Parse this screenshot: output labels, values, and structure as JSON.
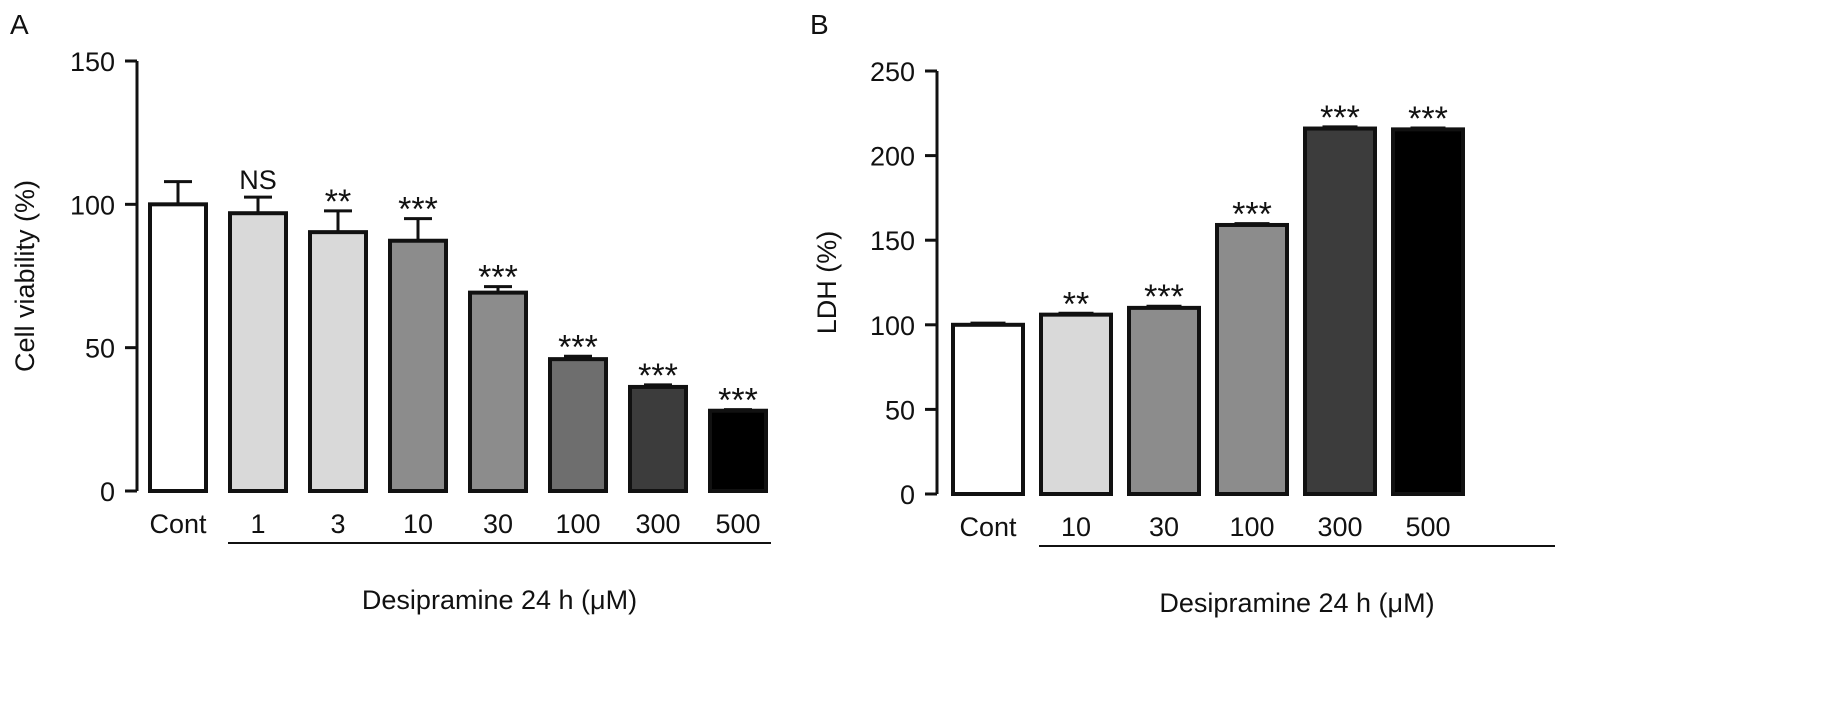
{
  "chart_data": [
    {
      "panel": "A",
      "type": "bar",
      "ylabel": "Cell viability (%)",
      "xlabel": "Desipramine 24 h (μM)",
      "ylim": [
        0,
        150
      ],
      "yticks": [
        0,
        50,
        100,
        150
      ],
      "categories": [
        "Cont",
        "1",
        "3",
        "10",
        "30",
        "100",
        "300",
        "500"
      ],
      "values": [
        100,
        96.9,
        90.3,
        87.3,
        69.2,
        46,
        36.3,
        28
      ],
      "errors": [
        7.9,
        5.6,
        7.4,
        7.7,
        2.1,
        1.0,
        0.7,
        0.4
      ],
      "annotations": [
        "",
        "NS",
        "**",
        "***",
        "***",
        "***",
        "***",
        "***"
      ],
      "colors": [
        "#ffffff",
        "#d9d9d9",
        "#d9d9d9",
        "#8c8c8c",
        "#8c8c8c",
        "#6e6e6e",
        "#3c3c3c",
        "#000000"
      ],
      "grid": false
    },
    {
      "panel": "B",
      "type": "bar",
      "ylabel": "LDH (%)",
      "xlabel": "Desipramine 24 h (μM)",
      "ylim": [
        0,
        250
      ],
      "yticks": [
        0,
        50,
        100,
        150,
        200,
        250
      ],
      "categories": [
        "Cont",
        "10",
        "30",
        "100",
        "300",
        "500"
      ],
      "values": [
        100,
        106,
        110,
        159,
        216,
        215.5
      ],
      "errors": [
        1,
        0.8,
        1,
        0.8,
        1,
        0.8
      ],
      "annotations": [
        "",
        "**",
        "***",
        "***",
        "***",
        "***"
      ],
      "colors": [
        "#ffffff",
        "#d9d9d9",
        "#8c8c8c",
        "#8c8c8c",
        "#3c3c3c",
        "#000000"
      ],
      "grid": false
    }
  ]
}
